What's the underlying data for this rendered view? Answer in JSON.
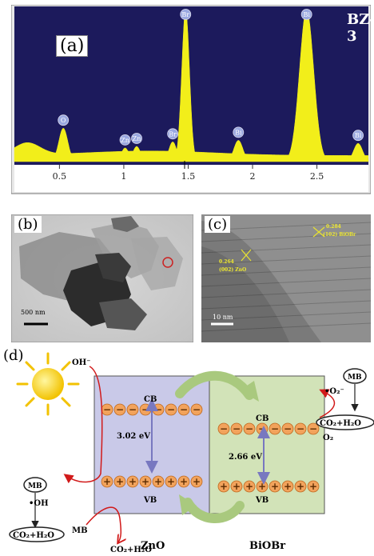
{
  "panel_a": {
    "label": "(a)",
    "sample_id": "BZ-3",
    "colors": {
      "background": "#1c1a5c",
      "spectrum": "#f2ee1a",
      "peak_marker": "#9aa8e0"
    },
    "chart_data": {
      "type": "area",
      "title": "",
      "xlabel": "",
      "ylabel": "",
      "xlim": [
        0.15,
        2.9
      ],
      "ylim": [
        0,
        100
      ],
      "x_ticks": [
        "0.5",
        "1",
        "1.5",
        "2",
        "2.5"
      ],
      "x_tick_values": [
        0.5,
        1.0,
        1.5,
        2.0,
        2.5
      ],
      "peaks": [
        {
          "element": "O",
          "x": 0.53,
          "y": 22
        },
        {
          "element": "Zn",
          "x": 1.01,
          "y": 9
        },
        {
          "element": "Zn",
          "x": 1.1,
          "y": 10
        },
        {
          "element": "Br",
          "x": 1.38,
          "y": 13
        },
        {
          "element": "Br",
          "x": 1.48,
          "y": 100
        },
        {
          "element": "Bi",
          "x": 1.89,
          "y": 14
        },
        {
          "element": "Bi",
          "x": 2.42,
          "y": 100
        },
        {
          "element": "Bi",
          "x": 2.82,
          "y": 12
        }
      ]
    }
  },
  "panel_b": {
    "label": "(b)",
    "scale_bar": "500 nm"
  },
  "panel_c": {
    "label": "(c)",
    "scale_bar": "10 nm",
    "annotation_zno": {
      "value": "0.264",
      "plane": "(002) ZnO"
    },
    "annotation_biobr": {
      "value": "0.284",
      "plane": "(102) BiOBr"
    }
  },
  "panel_d": {
    "label": "(d)",
    "zno_name": "ZnO",
    "biobr_name": "BiOBr",
    "zno_gap": "3.02 eV",
    "biobr_gap": "2.66 eV",
    "cb": "CB",
    "vb": "VB",
    "oh_minus": "OH⁻",
    "oh_radical": "•OH",
    "mb": "MB",
    "co2_h2o": "CO₂+H₂O",
    "o2": "O₂",
    "o2_radical": "•O₂⁻",
    "electron_symbol": "−",
    "hole_symbol": "+",
    "colors": {
      "zno_bg": "#c9c9e8",
      "biobr_bg": "#d2e3b8",
      "particle": "#f2a35c",
      "arrow_green": "#a9c97e",
      "red": "#d11a1a"
    }
  }
}
